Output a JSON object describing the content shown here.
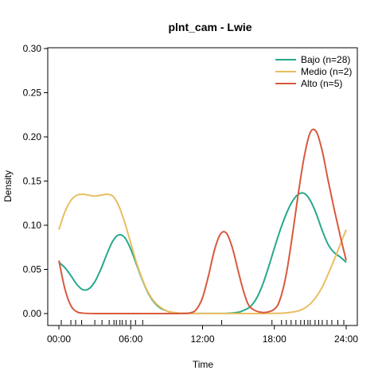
{
  "chart_data": {
    "type": "line",
    "title": "plnt_cam - Lwie",
    "xlabel": "Time",
    "ylabel": "Density",
    "xlim": [
      0,
      24
    ],
    "ylim": [
      0,
      0.3
    ],
    "x_ticks": [
      0,
      6,
      12,
      18,
      24
    ],
    "x_tick_labels": [
      "00:00",
      "06:00",
      "12:00",
      "18:00",
      "24:00"
    ],
    "y_ticks": [
      0.0,
      0.05,
      0.1,
      0.15,
      0.2,
      0.25,
      0.3
    ],
    "y_tick_labels": [
      "0.00",
      "0.05",
      "0.10",
      "0.15",
      "0.20",
      "0.25",
      "0.30"
    ],
    "legend_position": "top-right",
    "series": [
      {
        "name": "Bajo (n=28)",
        "color": "#26a98a",
        "x": [
          0,
          0.5,
          1,
          1.5,
          2,
          2.5,
          3,
          3.5,
          4,
          4.5,
          5,
          5.5,
          6,
          6.5,
          7,
          7.5,
          8,
          8.5,
          9,
          9.5,
          10,
          11,
          12,
          13,
          14,
          15,
          15.5,
          16,
          16.5,
          17,
          17.5,
          18,
          18.5,
          19,
          19.5,
          20,
          20.5,
          21,
          21.5,
          22,
          22.5,
          23,
          23.5,
          24
        ],
        "y": [
          0.058,
          0.052,
          0.043,
          0.033,
          0.027,
          0.028,
          0.036,
          0.05,
          0.067,
          0.082,
          0.089,
          0.086,
          0.073,
          0.055,
          0.037,
          0.022,
          0.012,
          0.006,
          0.003,
          0.001,
          0.0005,
          0.0002,
          0.0001,
          0.0001,
          0.0002,
          0.0015,
          0.004,
          0.008,
          0.017,
          0.032,
          0.052,
          0.074,
          0.095,
          0.113,
          0.127,
          0.135,
          0.136,
          0.128,
          0.113,
          0.094,
          0.078,
          0.069,
          0.064,
          0.058
        ]
      },
      {
        "name": "Medio (n=2)",
        "color": "#e9be62",
        "x": [
          0,
          0.5,
          1,
          1.5,
          2,
          2.5,
          3,
          3.5,
          4,
          4.5,
          5,
          5.5,
          6,
          6.5,
          7,
          7.5,
          8,
          8.5,
          9,
          9.5,
          10,
          11,
          12,
          14,
          16,
          18,
          19,
          20,
          20.5,
          21,
          21.5,
          22,
          22.5,
          23,
          23.5,
          24
        ],
        "y": [
          0.095,
          0.115,
          0.128,
          0.134,
          0.135,
          0.134,
          0.133,
          0.134,
          0.135,
          0.133,
          0.122,
          0.103,
          0.08,
          0.057,
          0.038,
          0.023,
          0.013,
          0.007,
          0.003,
          0.0015,
          0.0006,
          0.0001,
          0.0,
          0.0,
          0.0,
          0.0002,
          0.0008,
          0.003,
          0.006,
          0.011,
          0.019,
          0.03,
          0.045,
          0.061,
          0.078,
          0.095
        ]
      },
      {
        "name": "Alto (n=5)",
        "color": "#d9593d",
        "x": [
          0,
          0.5,
          1,
          1.5,
          2,
          3,
          5,
          8,
          10,
          11,
          11.5,
          12,
          12.5,
          13,
          13.5,
          14,
          14.5,
          15,
          15.5,
          16,
          17,
          18,
          18.5,
          19,
          19.5,
          20,
          20.5,
          21,
          21.5,
          22,
          22.5,
          23,
          23.5,
          24
        ],
        "y": [
          0.06,
          0.028,
          0.009,
          0.002,
          0.0005,
          0.0,
          0.0,
          0.0,
          0.0,
          0.0008,
          0.005,
          0.018,
          0.043,
          0.072,
          0.09,
          0.091,
          0.074,
          0.047,
          0.022,
          0.007,
          0.0012,
          0.005,
          0.017,
          0.045,
          0.088,
          0.136,
          0.178,
          0.205,
          0.206,
          0.184,
          0.15,
          0.118,
          0.088,
          0.06
        ]
      }
    ],
    "rug": [
      0.2,
      1.0,
      1.4,
      1.9,
      3.0,
      3.6,
      4.2,
      4.6,
      4.8,
      5.1,
      5.3,
      5.6,
      6.0,
      6.4,
      7.0,
      13.6,
      17.8,
      18.6,
      19.0,
      19.4,
      19.8,
      20.2,
      20.5,
      20.8,
      21.0,
      21.4,
      21.7,
      22.0,
      22.4,
      22.8,
      23.3,
      23.8
    ]
  }
}
